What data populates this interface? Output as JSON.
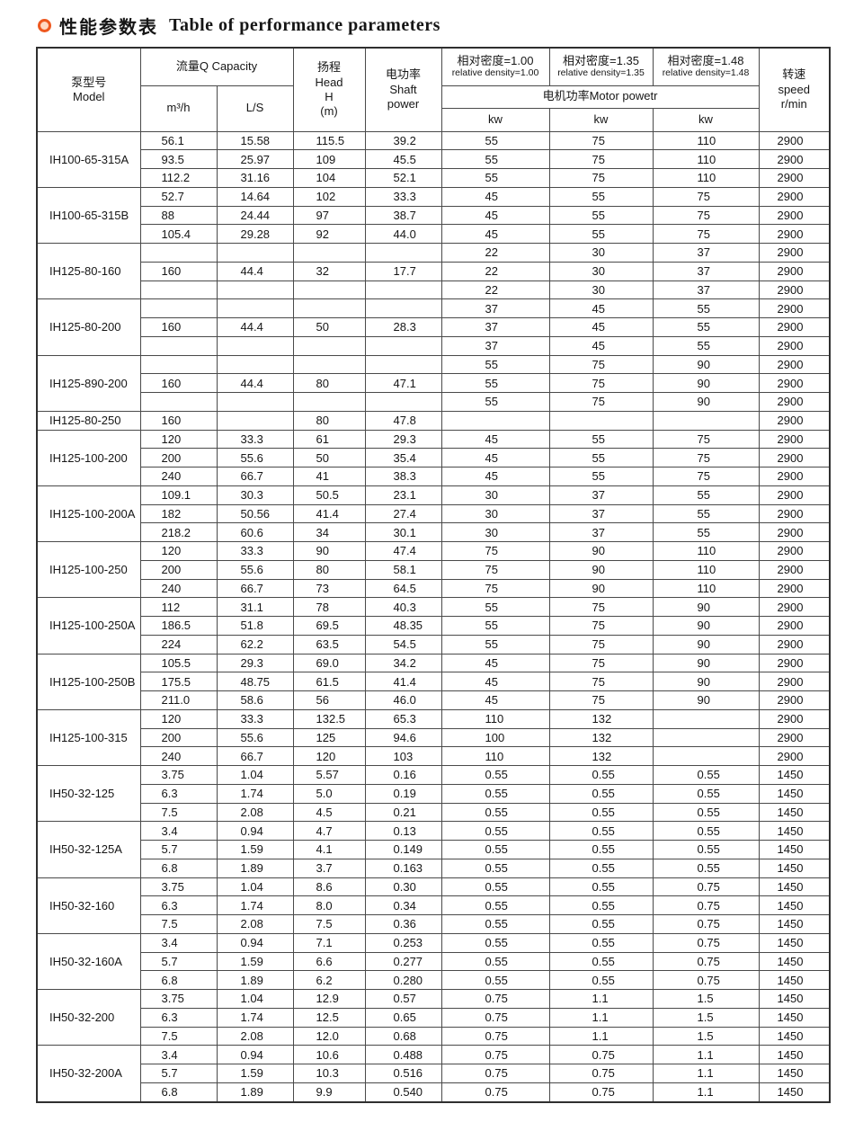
{
  "title": {
    "zh": "性能参数表",
    "en": "Table of performance parameters"
  },
  "colors": {
    "bullet_ring": "#ee581f",
    "bullet_center": "#ffd8c2",
    "border": "#4a4a4a",
    "text": "#161616",
    "background": "#ffffff"
  },
  "table": {
    "header": {
      "model": "泵型号\nModel",
      "capacity": "流量Q Capacity",
      "m3h": "m³/h",
      "ls": "L/S",
      "head": "扬程\nHead\nH\n(m)",
      "shaft_power": "电功率\nShaft\npower",
      "density1_zh": "相对密度=1.00",
      "density1_en": "relative density=1.00",
      "density2_zh": "相对密度=1.35",
      "density2_en": "relative density=1.35",
      "density3_zh": "相对密度=1.48",
      "density3_en": "relative density=1.48",
      "motor_power": "电机功率Motor powetr",
      "kw": "kw",
      "speed": "转速\nspeed\nr/min"
    },
    "blocks": [
      {
        "model": "IH100-65-315A",
        "rows": [
          [
            "56.1",
            "15.58",
            "115.5",
            "39.2",
            "55",
            "75",
            "110",
            "2900"
          ],
          [
            "93.5",
            "25.97",
            "109",
            "45.5",
            "55",
            "75",
            "110",
            "2900"
          ],
          [
            "112.2",
            "31.16",
            "104",
            "52.1",
            "55",
            "75",
            "110",
            "2900"
          ]
        ]
      },
      {
        "model": "IH100-65-315B",
        "rows": [
          [
            "52.7",
            "14.64",
            "102",
            "33.3",
            "45",
            "55",
            "75",
            "2900"
          ],
          [
            "88",
            "24.44",
            "97",
            "38.7",
            "45",
            "55",
            "75",
            "2900"
          ],
          [
            "105.4",
            "29.28",
            "92",
            "44.0",
            "45",
            "55",
            "75",
            "2900"
          ]
        ]
      },
      {
        "model": "IH125-80-160",
        "rows": [
          [
            "",
            "",
            "",
            "",
            "22",
            "30",
            "37",
            "2900"
          ],
          [
            "160",
            "44.4",
            "32",
            "17.7",
            "22",
            "30",
            "37",
            "2900"
          ],
          [
            "",
            "",
            "",
            "",
            "22",
            "30",
            "37",
            "2900"
          ]
        ]
      },
      {
        "model": "IH125-80-200",
        "rows": [
          [
            "",
            "",
            "",
            "",
            "37",
            "45",
            "55",
            "2900"
          ],
          [
            "160",
            "44.4",
            "50",
            "28.3",
            "37",
            "45",
            "55",
            "2900"
          ],
          [
            "",
            "",
            "",
            "",
            "37",
            "45",
            "55",
            "2900"
          ]
        ]
      },
      {
        "model": "IH125-890-200",
        "rows": [
          [
            "",
            "",
            "",
            "",
            "55",
            "75",
            "90",
            "2900"
          ],
          [
            "160",
            "44.4",
            "80",
            "47.1",
            "55",
            "75",
            "90",
            "2900"
          ],
          [
            "",
            "",
            "",
            "",
            "55",
            "75",
            "90",
            "2900"
          ]
        ]
      },
      {
        "model": "IH125-80-250",
        "rows": [
          [
            "160",
            "",
            "80",
            "47.8",
            "",
            "",
            "",
            "2900"
          ]
        ]
      },
      {
        "model": "IH125-100-200",
        "rows": [
          [
            "120",
            "33.3",
            "61",
            "29.3",
            "45",
            "55",
            "75",
            "2900"
          ],
          [
            "200",
            "55.6",
            "50",
            "35.4",
            "45",
            "55",
            "75",
            "2900"
          ],
          [
            "240",
            "66.7",
            "41",
            "38.3",
            "45",
            "55",
            "75",
            "2900"
          ]
        ]
      },
      {
        "model": "IH125-100-200A",
        "rows": [
          [
            "109.1",
            "30.3",
            "50.5",
            "23.1",
            "30",
            "37",
            "55",
            "2900"
          ],
          [
            "182",
            "50.56",
            "41.4",
            "27.4",
            "30",
            "37",
            "55",
            "2900"
          ],
          [
            "218.2",
            "60.6",
            "34",
            "30.1",
            "30",
            "37",
            "55",
            "2900"
          ]
        ]
      },
      {
        "model": "IH125-100-250",
        "rows": [
          [
            "120",
            "33.3",
            "90",
            "47.4",
            "75",
            "90",
            "110",
            "2900"
          ],
          [
            "200",
            "55.6",
            "80",
            "58.1",
            "75",
            "90",
            "110",
            "2900"
          ],
          [
            "240",
            "66.7",
            "73",
            "64.5",
            "75",
            "90",
            "110",
            "2900"
          ]
        ]
      },
      {
        "model": "IH125-100-250A",
        "rows": [
          [
            "112",
            "31.1",
            "78",
            "40.3",
            "55",
            "75",
            "90",
            "2900"
          ],
          [
            "186.5",
            "51.8",
            "69.5",
            "48.35",
            "55",
            "75",
            "90",
            "2900"
          ],
          [
            "224",
            "62.2",
            "63.5",
            "54.5",
            "55",
            "75",
            "90",
            "2900"
          ]
        ]
      },
      {
        "model": "IH125-100-250B",
        "rows": [
          [
            "105.5",
            "29.3",
            "69.0",
            "34.2",
            "45",
            "75",
            "90",
            "2900"
          ],
          [
            "175.5",
            "48.75",
            "61.5",
            "41.4",
            "45",
            "75",
            "90",
            "2900"
          ],
          [
            "211.0",
            "58.6",
            "56",
            "46.0",
            "45",
            "75",
            "90",
            "2900"
          ]
        ]
      },
      {
        "model": "IH125-100-315",
        "rows": [
          [
            "120",
            "33.3",
            "132.5",
            "65.3",
            "110",
            "132",
            "",
            "2900"
          ],
          [
            "200",
            "55.6",
            "125",
            "94.6",
            "100",
            "132",
            "",
            "2900"
          ],
          [
            "240",
            "66.7",
            "120",
            "103",
            "110",
            "132",
            "",
            "2900"
          ]
        ]
      },
      {
        "model": "IH50-32-125",
        "rows": [
          [
            "3.75",
            "1.04",
            "5.57",
            "0.16",
            "0.55",
            "0.55",
            "0.55",
            "1450"
          ],
          [
            "6.3",
            "1.74",
            "5.0",
            "0.19",
            "0.55",
            "0.55",
            "0.55",
            "1450"
          ],
          [
            "7.5",
            "2.08",
            "4.5",
            "0.21",
            "0.55",
            "0.55",
            "0.55",
            "1450"
          ]
        ]
      },
      {
        "model": "IH50-32-125A",
        "rows": [
          [
            "3.4",
            "0.94",
            "4.7",
            "0.13",
            "0.55",
            "0.55",
            "0.55",
            "1450"
          ],
          [
            "5.7",
            "1.59",
            "4.1",
            "0.149",
            "0.55",
            "0.55",
            "0.55",
            "1450"
          ],
          [
            "6.8",
            "1.89",
            "3.7",
            "0.163",
            "0.55",
            "0.55",
            "0.55",
            "1450"
          ]
        ]
      },
      {
        "model": "IH50-32-160",
        "rows": [
          [
            "3.75",
            "1.04",
            "8.6",
            "0.30",
            "0.55",
            "0.55",
            "0.75",
            "1450"
          ],
          [
            "6.3",
            "1.74",
            "8.0",
            "0.34",
            "0.55",
            "0.55",
            "0.75",
            "1450"
          ],
          [
            "7.5",
            "2.08",
            "7.5",
            "0.36",
            "0.55",
            "0.55",
            "0.75",
            "1450"
          ]
        ]
      },
      {
        "model": "IH50-32-160A",
        "rows": [
          [
            "3.4",
            "0.94",
            "7.1",
            "0.253",
            "0.55",
            "0.55",
            "0.75",
            "1450"
          ],
          [
            "5.7",
            "1.59",
            "6.6",
            "0.277",
            "0.55",
            "0.55",
            "0.75",
            "1450"
          ],
          [
            "6.8",
            "1.89",
            "6.2",
            "0.280",
            "0.55",
            "0.55",
            "0.75",
            "1450"
          ]
        ]
      },
      {
        "model": "IH50-32-200",
        "rows": [
          [
            "3.75",
            "1.04",
            "12.9",
            "0.57",
            "0.75",
            "1.1",
            "1.5",
            "1450"
          ],
          [
            "6.3",
            "1.74",
            "12.5",
            "0.65",
            "0.75",
            "1.1",
            "1.5",
            "1450"
          ],
          [
            "7.5",
            "2.08",
            "12.0",
            "0.68",
            "0.75",
            "1.1",
            "1.5",
            "1450"
          ]
        ]
      },
      {
        "model": "IH50-32-200A",
        "rows": [
          [
            "3.4",
            "0.94",
            "10.6",
            "0.488",
            "0.75",
            "0.75",
            "1.1",
            "1450"
          ],
          [
            "5.7",
            "1.59",
            "10.3",
            "0.516",
            "0.75",
            "0.75",
            "1.1",
            "1450"
          ],
          [
            "6.8",
            "1.89",
            "9.9",
            "0.540",
            "0.75",
            "0.75",
            "1.1",
            "1450"
          ]
        ]
      }
    ]
  }
}
